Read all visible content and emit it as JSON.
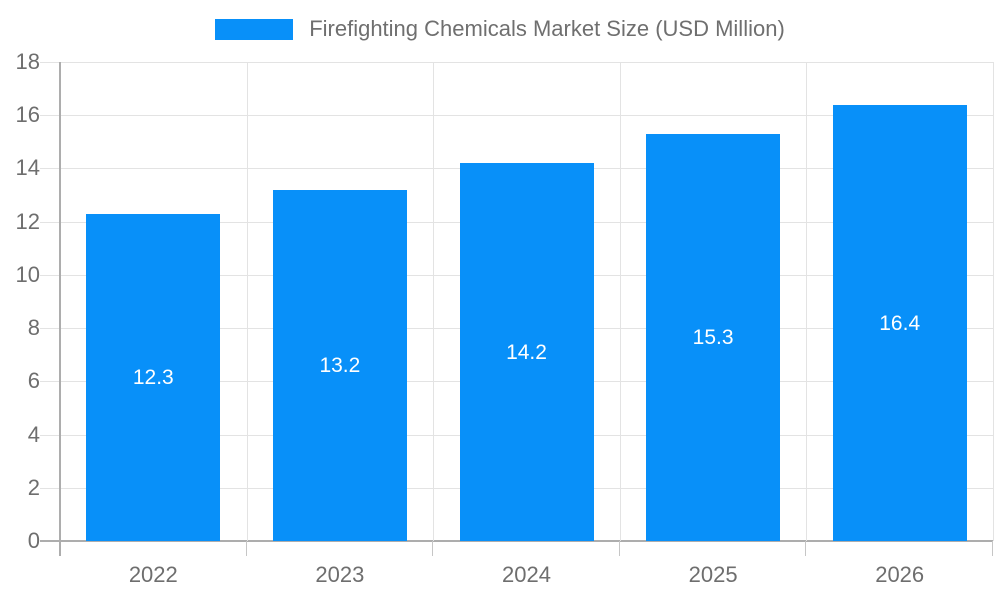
{
  "chart_data": {
    "type": "bar",
    "title": "Firefighting Chemicals Market Size (USD Million)",
    "categories": [
      "2022",
      "2023",
      "2024",
      "2025",
      "2026"
    ],
    "values": [
      12.3,
      13.2,
      14.2,
      15.3,
      16.4
    ],
    "series": [
      {
        "name": "Firefighting Chemicals Market Size (USD Million)",
        "values": [
          12.3,
          13.2,
          14.2,
          15.3,
          16.4
        ]
      }
    ],
    "xlabel": "",
    "ylabel": "",
    "ylim": [
      0,
      18
    ],
    "ytick_step": 2,
    "yticks": [
      0,
      2,
      4,
      6,
      8,
      10,
      12,
      14,
      16,
      18
    ],
    "grid": true,
    "legend_position": "top",
    "value_labels": [
      "12.3",
      "13.2",
      "14.2",
      "15.3",
      "16.4"
    ],
    "colors": {
      "bar": "#0890f9",
      "value_label": "#ffffff",
      "axis_text": "#6e6e6e",
      "legend_text": "#6f6f6f",
      "grid_line": "#e3e3e3",
      "axis_line": "#adadad"
    }
  }
}
